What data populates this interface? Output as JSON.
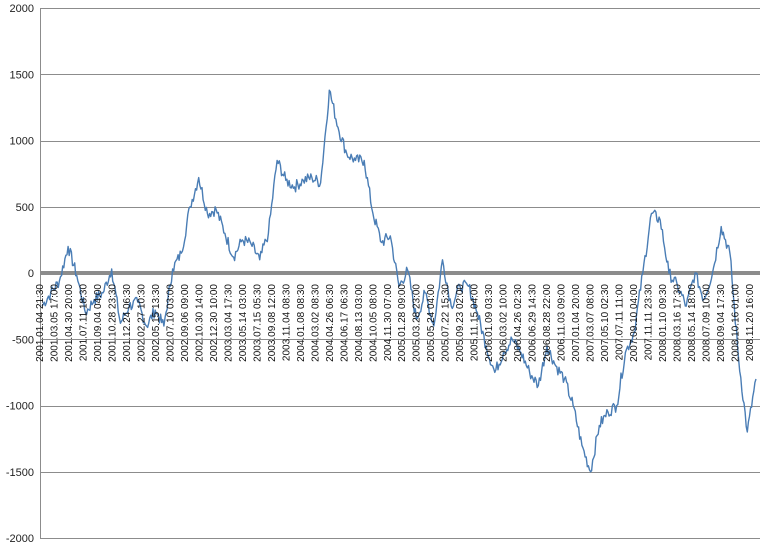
{
  "chart_data": {
    "type": "line",
    "title": "",
    "xlabel": "",
    "ylabel": "",
    "ylim": [
      -2000,
      2000
    ],
    "yticks": [
      2000,
      1500,
      1000,
      500,
      0,
      -500,
      -1000,
      -1500,
      -2000
    ],
    "grid": true,
    "legend": "none",
    "xtick_labels": [
      "2001.01.04 21:30",
      "2001.03.05 17:00",
      "2001.04.30 20:00",
      "2001.07.11 18:30",
      "2001.09.04 04:00",
      "2001.10.28 23:30",
      "2001.12.24 06:30",
      "2002.02.27 10:30",
      "2002.05.15 13:30",
      "2002.07.10 03:00",
      "2002.09.06 09:00",
      "2002.10.30 14:00",
      "2002.12.30 10:00",
      "2003.03.04 17:30",
      "2003.05.14 03:00",
      "2003.07.15 05:30",
      "2003.09.08 12:00",
      "2003.11.04 08:30",
      "2004.01.08 08:30",
      "2004.03.02 08:30",
      "2004.04.26 06:30",
      "2004.06.17 06:30",
      "2004.08.13 03:00",
      "2004.10.05 08:00",
      "2004.11.30 07:00",
      "2005.01.28 09:00",
      "2005.03.28 23:00",
      "2005.05.24 04:00",
      "2005.07.22 15:30",
      "2005.09.23 02:00",
      "2005.11.15 04:00",
      "2006.01.09 03:30",
      "2006.03.02 10:00",
      "2006.04.26 02:30",
      "2006.06.29 14:30",
      "2006.08.28 22:00",
      "2006.11.03 09:00",
      "2007.01.04 20:00",
      "2007.03.07 08:00",
      "2007.05.10 02:30",
      "2007.07.11 11:00",
      "2007.09.10 04:00",
      "2007.11.11 23:30",
      "2008.01.10 09:30",
      "2008.03.16 17:30",
      "2008.05.14 18:00",
      "2008.07.09 10:00",
      "2008.09.04 17:30",
      "2008.10.16 01:00",
      "2008.11.20 16:00"
    ],
    "series": [
      {
        "color": "#4a7db5",
        "values": [
          -250,
          -150,
          -60,
          200,
          -20,
          -300,
          -200,
          -150,
          30,
          -380,
          -250,
          -220,
          -400,
          -280,
          -400,
          30,
          150,
          500,
          720,
          450,
          480,
          300,
          120,
          250,
          220,
          100,
          300,
          850,
          700,
          650,
          700,
          720,
          680,
          1380,
          1100,
          900,
          850,
          850,
          450,
          230,
          280,
          -100,
          20,
          -350,
          -150,
          -400,
          100,
          -250,
          -100,
          -100,
          -300,
          -550,
          -750,
          -600,
          -500,
          -600,
          -750,
          -850,
          -550,
          -700,
          -800,
          -1000,
          -1300,
          -1500,
          -1150,
          -1050,
          -1000,
          -600,
          -450,
          0,
          450,
          400,
          0,
          -100,
          -250,
          0,
          -200,
          0,
          350,
          150,
          -650,
          -1200,
          -800
        ]
      }
    ]
  }
}
